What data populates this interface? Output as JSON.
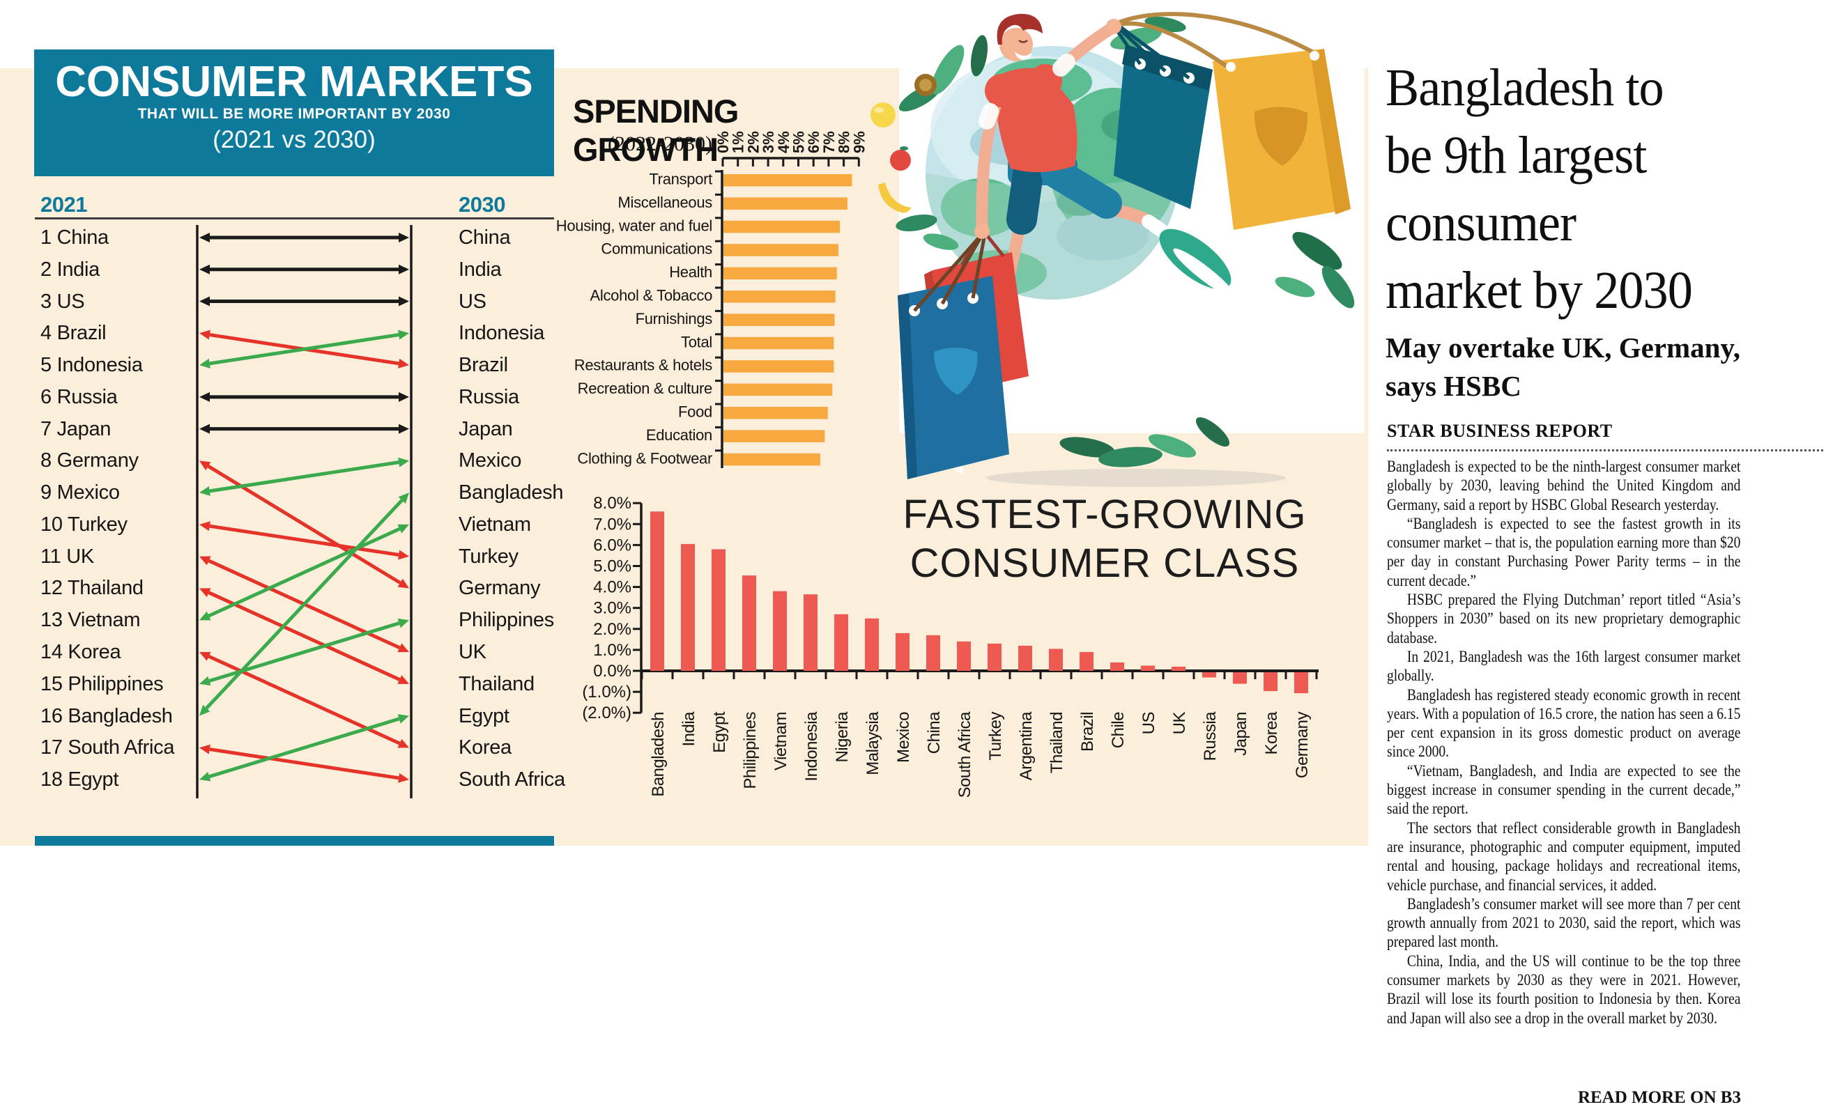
{
  "colors": {
    "teal": "#0D7A9C",
    "cream": "#FBEEDA",
    "ink": "#1A1A1A",
    "orange_bar": "#F7A83E",
    "red_bar": "#EE5A52",
    "arrow_up": "#3BAA4C",
    "arrow_down": "#E63329",
    "arrow_same": "#1A1A1A"
  },
  "rank_panel": {
    "title": "CONSUMER MARKETS",
    "subtitle": "THAT WILL BE MORE IMPORTANT BY 2030",
    "comparison": "(2021 vs 2030)",
    "col_left": "2021",
    "col_right": "2030",
    "rows": [
      {
        "rank": 1,
        "country": "China",
        "to": 1
      },
      {
        "rank": 2,
        "country": "India",
        "to": 2
      },
      {
        "rank": 3,
        "country": "US",
        "to": 3
      },
      {
        "rank": 4,
        "country": "Brazil",
        "to": 5
      },
      {
        "rank": 5,
        "country": "Indonesia",
        "to": 4
      },
      {
        "rank": 6,
        "country": "Russia",
        "to": 6
      },
      {
        "rank": 7,
        "country": "Japan",
        "to": 7
      },
      {
        "rank": 8,
        "country": "Germany",
        "to": 12
      },
      {
        "rank": 9,
        "country": "Mexico",
        "to": 8
      },
      {
        "rank": 10,
        "country": "Turkey",
        "to": 11
      },
      {
        "rank": 11,
        "country": "UK",
        "to": 14
      },
      {
        "rank": 12,
        "country": "Thailand",
        "to": 15
      },
      {
        "rank": 13,
        "country": "Vietnam",
        "to": 10
      },
      {
        "rank": 14,
        "country": "Korea",
        "to": 17
      },
      {
        "rank": 15,
        "country": "Philippines",
        "to": 13
      },
      {
        "rank": 16,
        "country": "Bangladesh",
        "to": 9
      },
      {
        "rank": 17,
        "country": "South Africa",
        "to": 18
      },
      {
        "rank": 18,
        "country": "Egypt",
        "to": 16
      }
    ],
    "list_2030": [
      "China",
      "India",
      "US",
      "Indonesia",
      "Brazil",
      "Russia",
      "Japan",
      "Mexico",
      "Bangladesh",
      "Vietnam",
      "Turkey",
      "Germany",
      "Philippines",
      "UK",
      "Thailand",
      "Egypt",
      "Korea",
      "South Africa"
    ]
  },
  "chart_data": [
    {
      "type": "bar",
      "orientation": "horizontal",
      "title": "SPENDING GROWTH",
      "subtitle": "(2022-2030)",
      "categories": [
        "Transport",
        "Miscellaneous",
        "Housing, water and fuel",
        "Communications",
        "Health",
        "Alcohol & Tobacco",
        "Furnishings",
        "Total",
        "Restaurants & hotels",
        "Recreation & culture",
        "Food",
        "Education",
        "Clothing & Footwear"
      ],
      "values": [
        8.5,
        8.2,
        7.7,
        7.6,
        7.5,
        7.4,
        7.35,
        7.3,
        7.3,
        7.2,
        6.9,
        6.7,
        6.4
      ],
      "xlim": [
        0,
        9
      ],
      "tick_labels": [
        "0%",
        "1%",
        "2%",
        "3%",
        "4%",
        "5%",
        "6%",
        "7%",
        "8%",
        "9%"
      ],
      "bar_color": "#F7A83E"
    },
    {
      "type": "bar",
      "orientation": "vertical",
      "title": "FASTEST-GROWING CONSUMER CLASS",
      "title_lines": [
        "FASTEST-GROWING",
        "CONSUMER CLASS"
      ],
      "categories": [
        "Bangladesh",
        "India",
        "Egypt",
        "Philippines",
        "Vietnam",
        "Indonesia",
        "Nigeria",
        "Malaysia",
        "Mexico",
        "China",
        "South Africa",
        "Turkey",
        "Argentina",
        "Thailand",
        "Brazil",
        "Chile",
        "US",
        "UK",
        "Russia",
        "Japan",
        "Korea",
        "Germany"
      ],
      "values": [
        7.6,
        6.05,
        5.8,
        4.55,
        3.8,
        3.65,
        2.7,
        2.5,
        1.8,
        1.7,
        1.4,
        1.3,
        1.2,
        1.05,
        0.9,
        0.4,
        0.25,
        0.2,
        -0.25,
        -0.55,
        -0.9,
        -1.0
      ],
      "ylim": [
        -2,
        8
      ],
      "ytick_labels": [
        "8.0%",
        "7.0%",
        "6.0%",
        "5.0%",
        "4.0%",
        "3.0%",
        "2.0%",
        "1.0%",
        "0.0%",
        "(1.0%)",
        "(2.0%)"
      ],
      "bar_color": "#EE5A52"
    }
  ],
  "article": {
    "headline_lines": [
      "Bangladesh to",
      "be 9th largest",
      "consumer",
      "market by 2030"
    ],
    "subhead_lines": [
      "May overtake UK, Germany,",
      "says HSBC"
    ],
    "byline": "STAR BUSINESS REPORT",
    "paragraphs": [
      "Bangladesh is expected to be the ninth-largest consumer market globally by 2030, leaving behind the United Kingdom and Germany, said a report by HSBC Global Research yesterday.",
      "“Bangladesh is expected to see the fastest growth in its consumer market – that is, the population earning more than $20 per day in constant Purchasing Power Parity terms – in the current decade.”",
      "HSBC prepared the Flying Dutchman’ report titled “Asia’s Shoppers in 2030” based on its new proprietary demographic database.",
      "In 2021, Bangladesh was the 16th largest consumer market globally.",
      "Bangladesh has registered steady economic growth in recent years. With a population of 16.5 crore, the nation has seen a 6.15 per cent expansion in its gross domestic product on average since 2000.",
      "“Vietnam, Bangladesh, and India are expected to see the biggest increase in consumer spending in the current decade,” said the report.",
      "The sectors that reflect considerable growth in Bangladesh are insurance, photographic and computer equipment, imputed rental and housing, package holidays and recreational items, vehicle purchase, and financial services, it added.",
      "Bangladesh’s consumer market will see more than 7 per cent growth annually from 2021 to 2030, said the report, which was prepared last month.",
      "China, India, and the US will continue to be the top three consumer markets by 2030 as they were in 2021. However, Brazil will lose its fourth position to Indonesia by then. Korea and Japan will also see a drop in the overall market by 2030."
    ],
    "read_more": "READ MORE ON B3"
  }
}
